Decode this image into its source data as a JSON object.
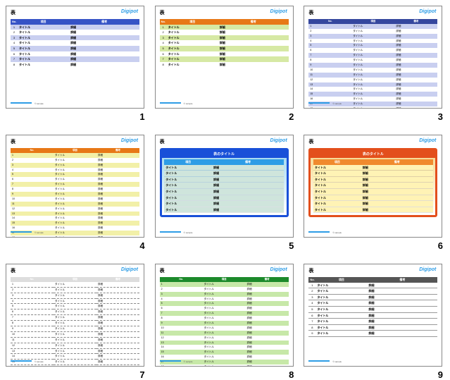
{
  "common": {
    "thumb_title": "表",
    "brand": "Digipot",
    "footer_txt": "© sample",
    "col_no": "No.",
    "col_a": "項目",
    "col_b": "備考",
    "cell_a": "タイトル",
    "cell_b": "詳細",
    "titled_heading": "表のタイトル",
    "rows_small_numbered": 8,
    "rows_dense": 20,
    "rows_titled": 8
  },
  "slides": [
    {
      "num": 1,
      "type": "numbered",
      "rows": 8,
      "header_bg": "#3653c6",
      "stripe_bg": "#c9cff0",
      "text": "#000"
    },
    {
      "num": 2,
      "type": "numbered",
      "rows": 8,
      "header_bg": "#e77817",
      "stripe_bg": "#d6e9a4",
      "text": "#000"
    },
    {
      "num": 3,
      "type": "dense",
      "rows": 20,
      "header_bg": "#35479e",
      "stripe_bg": "#c9cff0",
      "text": "#000"
    },
    {
      "num": 4,
      "type": "dense",
      "rows": 20,
      "header_bg": "#e77817",
      "stripe_bg": "#f2f0a8",
      "text": "#000"
    },
    {
      "num": 5,
      "type": "titled",
      "rows": 8,
      "border": "#1950d8",
      "header_bg": "#1950d8",
      "sub_bg": "#2e9de6",
      "row_bg": "#cfe5dc",
      "text": "#000",
      "grad_from": "#9fd7f0",
      "grad_to": "#ffffff"
    },
    {
      "num": 6,
      "type": "titled",
      "rows": 8,
      "border": "#e34f1c",
      "header_bg": "#e34f1c",
      "sub_bg": "#f08a2e",
      "row_bg": "#fff3b5",
      "text": "#000",
      "grad_from": "#f6d78a",
      "grad_to": "#ffffff"
    },
    {
      "num": 7,
      "type": "dense",
      "rows": 20,
      "header_bg": "#dddddd",
      "stripe_bg": "#ffffff",
      "text": "#000",
      "ruled": true
    },
    {
      "num": 8,
      "type": "dense",
      "rows": 20,
      "header_bg": "#1c8a2b",
      "stripe_bg": "#c7e8a8",
      "text": "#000"
    },
    {
      "num": 9,
      "type": "numbered",
      "rows": 9,
      "header_bg": "#555555",
      "stripe_bg": "#ffffff",
      "text": "#000",
      "ruled": true
    }
  ]
}
